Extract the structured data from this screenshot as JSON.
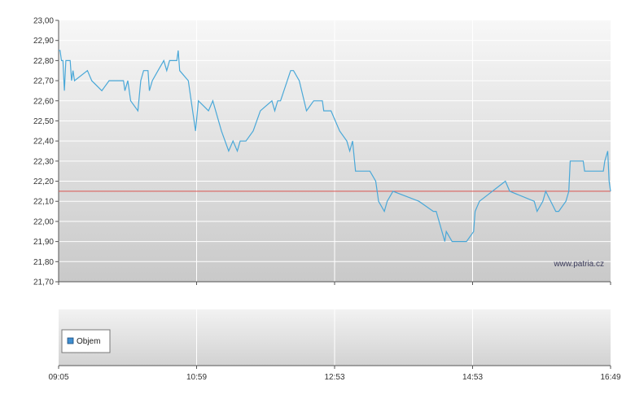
{
  "chart_data": {
    "type": "line",
    "watermark": "www.patria.cz",
    "y_range": [
      21.7,
      23.0
    ],
    "y_ticks": [
      "23,00",
      "22,90",
      "22,80",
      "22,70",
      "22,60",
      "22,50",
      "22,40",
      "22,30",
      "22,20",
      "22,10",
      "22,00",
      "21,90",
      "21,80",
      "21,70"
    ],
    "x_ticks": [
      "09:05",
      "10:59",
      "12:53",
      "14:53",
      "16:49"
    ],
    "grid": true,
    "reference_line": {
      "value": 22.15,
      "color": "#d9534f"
    },
    "series": [
      {
        "color": "#4aa8d8",
        "values": [
          [
            0,
            22.85
          ],
          [
            1,
            22.85
          ],
          [
            2,
            22.8
          ],
          [
            3,
            22.8
          ],
          [
            4,
            22.65
          ],
          [
            5,
            22.8
          ],
          [
            8,
            22.8
          ],
          [
            9,
            22.7
          ],
          [
            10,
            22.75
          ],
          [
            11,
            22.7
          ],
          [
            20,
            22.75
          ],
          [
            23,
            22.7
          ],
          [
            30,
            22.65
          ],
          [
            35,
            22.7
          ],
          [
            39,
            22.7
          ],
          [
            45,
            22.7
          ],
          [
            46,
            22.65
          ],
          [
            48,
            22.7
          ],
          [
            50,
            22.6
          ],
          [
            55,
            22.55
          ],
          [
            57,
            22.7
          ],
          [
            59,
            22.75
          ],
          [
            62,
            22.75
          ],
          [
            63,
            22.65
          ],
          [
            65,
            22.7
          ],
          [
            69,
            22.75
          ],
          [
            73,
            22.8
          ],
          [
            75,
            22.75
          ],
          [
            77,
            22.8
          ],
          [
            82,
            22.8
          ],
          [
            83,
            22.85
          ],
          [
            84,
            22.75
          ],
          [
            90,
            22.7
          ],
          [
            93,
            22.55
          ],
          [
            95,
            22.45
          ],
          [
            97,
            22.6
          ],
          [
            104,
            22.55
          ],
          [
            107,
            22.6
          ],
          [
            113,
            22.45
          ],
          [
            118,
            22.35
          ],
          [
            121,
            22.4
          ],
          [
            124,
            22.35
          ],
          [
            126,
            22.4
          ],
          [
            130,
            22.4
          ],
          [
            135,
            22.45
          ],
          [
            140,
            22.55
          ],
          [
            148,
            22.6
          ],
          [
            150,
            22.55
          ],
          [
            152,
            22.6
          ],
          [
            154,
            22.6
          ],
          [
            161,
            22.75
          ],
          [
            163,
            22.75
          ],
          [
            167,
            22.7
          ],
          [
            172,
            22.55
          ],
          [
            177,
            22.6
          ],
          [
            183,
            22.6
          ],
          [
            184,
            22.55
          ],
          [
            189,
            22.55
          ],
          [
            195,
            22.45
          ],
          [
            200,
            22.4
          ],
          [
            202,
            22.35
          ],
          [
            204,
            22.4
          ],
          [
            206,
            22.25
          ],
          [
            216,
            22.25
          ],
          [
            220,
            22.2
          ],
          [
            222,
            22.1
          ],
          [
            226,
            22.05
          ],
          [
            228,
            22.1
          ],
          [
            232,
            22.15
          ],
          [
            250,
            22.1
          ],
          [
            260,
            22.05
          ],
          [
            262,
            22.05
          ],
          [
            268,
            21.9
          ],
          [
            269,
            21.95
          ],
          [
            273,
            21.9
          ],
          [
            283,
            21.9
          ],
          [
            288,
            21.95
          ],
          [
            289,
            22.05
          ],
          [
            292,
            22.1
          ],
          [
            310,
            22.2
          ],
          [
            313,
            22.15
          ],
          [
            330,
            22.1
          ],
          [
            332,
            22.05
          ],
          [
            336,
            22.1
          ],
          [
            338,
            22.15
          ],
          [
            345,
            22.05
          ],
          [
            347,
            22.05
          ],
          [
            352,
            22.1
          ],
          [
            354,
            22.15
          ],
          [
            355,
            22.3
          ],
          [
            364,
            22.3
          ],
          [
            365,
            22.25
          ],
          [
            378,
            22.25
          ],
          [
            379,
            22.3
          ],
          [
            381,
            22.35
          ],
          [
            382,
            22.2
          ],
          [
            383,
            22.15
          ]
        ]
      }
    ],
    "volume_legend": "Objem"
  }
}
